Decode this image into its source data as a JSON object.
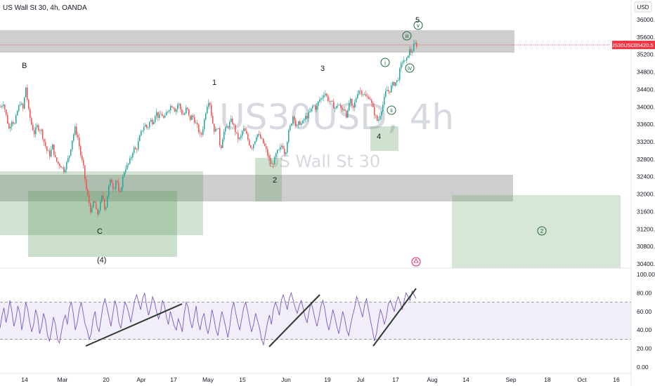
{
  "header": {
    "title": "US Wall St 30, 4h, OANDA",
    "currency_button": "USD"
  },
  "watermark": {
    "symbol": "US30USD, 4h",
    "name": "US Wall St 30"
  },
  "price_tag": {
    "symbol": "US30USD",
    "value": "35420.5"
  },
  "chart_data": {
    "type": "candlestick",
    "symbol": "US30USD",
    "interval": "4h",
    "price_axis": {
      "ticks": [
        "36000.0",
        "35600.0",
        "35200.0",
        "34800.0",
        "34400.0",
        "34000.0",
        "33600.0",
        "33200.0",
        "32800.0",
        "32400.0",
        "32000.0",
        "31600.0",
        "31200.0",
        "30800.0",
        "30400.0"
      ],
      "range": [
        30300,
        36200
      ]
    },
    "time_axis": {
      "ticks": [
        "14",
        "Mar",
        "20",
        "Apr",
        "17",
        "May",
        "15",
        "Jun",
        "19",
        "Jul",
        "17",
        "Aug",
        "14",
        "Sep",
        "18",
        "Oct",
        "16"
      ]
    },
    "price_path": [
      [
        0,
        34000
      ],
      [
        4,
        34100
      ],
      [
        8,
        33800
      ],
      [
        12,
        33500
      ],
      [
        16,
        33700
      ],
      [
        20,
        33600
      ],
      [
        24,
        33900
      ],
      [
        28,
        34100
      ],
      [
        32,
        33950
      ],
      [
        36,
        34450
      ],
      [
        40,
        33900
      ],
      [
        44,
        33600
      ],
      [
        48,
        33400
      ],
      [
        52,
        33550
      ],
      [
        58,
        33450
      ],
      [
        62,
        33200
      ],
      [
        66,
        33000
      ],
      [
        70,
        32900
      ],
      [
        74,
        33100
      ],
      [
        78,
        32800
      ],
      [
        82,
        32700
      ],
      [
        86,
        32650
      ],
      [
        90,
        32550
      ],
      [
        94,
        32700
      ],
      [
        98,
        32900
      ],
      [
        102,
        33250
      ],
      [
        106,
        33500
      ],
      [
        110,
        33300
      ],
      [
        114,
        32900
      ],
      [
        118,
        32600
      ],
      [
        122,
        32100
      ],
      [
        126,
        31800
      ],
      [
        129,
        31550
      ],
      [
        133,
        31900
      ],
      [
        137,
        31500
      ],
      [
        141,
        31700
      ],
      [
        145,
        32000
      ],
      [
        149,
        31600
      ],
      [
        153,
        32100
      ],
      [
        157,
        32350
      ],
      [
        161,
        32100
      ],
      [
        165,
        32400
      ],
      [
        169,
        31900
      ],
      [
        173,
        32300
      ],
      [
        177,
        32600
      ],
      [
        181,
        32650
      ],
      [
        185,
        32800
      ],
      [
        189,
        33050
      ],
      [
        193,
        33000
      ],
      [
        197,
        33250
      ],
      [
        201,
        33450
      ],
      [
        205,
        33600
      ],
      [
        209,
        33500
      ],
      [
        213,
        33700
      ],
      [
        217,
        33650
      ],
      [
        221,
        33900
      ],
      [
        225,
        33750
      ],
      [
        229,
        33850
      ],
      [
        233,
        33700
      ],
      [
        237,
        33900
      ],
      [
        241,
        34000
      ],
      [
        245,
        34050
      ],
      [
        249,
        33900
      ],
      [
        253,
        34100
      ],
      [
        257,
        33900
      ],
      [
        261,
        33800
      ],
      [
        265,
        34000
      ],
      [
        269,
        33700
      ],
      [
        273,
        33800
      ],
      [
        277,
        33650
      ],
      [
        281,
        33500
      ],
      [
        285,
        33300
      ],
      [
        289,
        33600
      ],
      [
        293,
        34000
      ],
      [
        297,
        34200
      ],
      [
        301,
        33700
      ],
      [
        305,
        33400
      ],
      [
        309,
        33600
      ],
      [
        313,
        33000
      ],
      [
        317,
        33400
      ],
      [
        321,
        33500
      ],
      [
        325,
        33600
      ],
      [
        329,
        33700
      ],
      [
        333,
        33500
      ],
      [
        337,
        33300
      ],
      [
        341,
        33250
      ],
      [
        345,
        33500
      ],
      [
        349,
        33400
      ],
      [
        353,
        33200
      ],
      [
        357,
        33050
      ],
      [
        361,
        33200
      ],
      [
        365,
        33400
      ],
      [
        369,
        33300
      ],
      [
        373,
        33200
      ],
      [
        377,
        33050
      ],
      [
        381,
        32850
      ],
      [
        385,
        32650
      ],
      [
        389,
        32750
      ],
      [
        393,
        32950
      ],
      [
        397,
        33000
      ],
      [
        401,
        33150
      ],
      [
        405,
        32900
      ],
      [
        409,
        33350
      ],
      [
        413,
        33600
      ],
      [
        417,
        33850
      ],
      [
        421,
        33500
      ],
      [
        425,
        33650
      ],
      [
        429,
        33600
      ],
      [
        433,
        33750
      ],
      [
        437,
        33800
      ],
      [
        441,
        33900
      ],
      [
        445,
        34050
      ],
      [
        449,
        33950
      ],
      [
        453,
        34150
      ],
      [
        457,
        34200
      ],
      [
        461,
        34350
      ],
      [
        465,
        34200
      ],
      [
        469,
        34100
      ],
      [
        473,
        34050
      ],
      [
        477,
        33950
      ],
      [
        481,
        34100
      ],
      [
        485,
        33900
      ],
      [
        489,
        34000
      ],
      [
        493,
        33750
      ],
      [
        497,
        34200
      ],
      [
        501,
        33900
      ],
      [
        505,
        34150
      ],
      [
        509,
        34400
      ],
      [
        513,
        34350
      ],
      [
        517,
        34300
      ],
      [
        521,
        34200
      ],
      [
        525,
        34250
      ],
      [
        529,
        34000
      ],
      [
        533,
        33800
      ],
      [
        537,
        33650
      ],
      [
        541,
        33900
      ],
      [
        545,
        34100
      ],
      [
        549,
        34400
      ],
      [
        553,
        34350
      ],
      [
        557,
        34500
      ],
      [
        561,
        34550
      ],
      [
        565,
        34600
      ],
      [
        569,
        34900
      ],
      [
        573,
        35100
      ],
      [
        577,
        35000
      ],
      [
        581,
        35300
      ],
      [
        585,
        35250
      ],
      [
        589,
        35450
      ],
      [
        592,
        35420
      ]
    ],
    "current_price": 35420.5,
    "wave_labels": [
      "B",
      "1",
      "3",
      "5",
      "2",
      "4",
      "C",
      "(4)"
    ],
    "sub_wave_labels": [
      "i",
      "ii",
      "iii",
      "iv",
      "v",
      "2"
    ],
    "rsi": {
      "axis_ticks": [
        "100.00",
        "80.00",
        "60.00",
        "40.00",
        "20.00",
        "0.00"
      ],
      "range": [
        0,
        100
      ],
      "overbought": 70,
      "oversold": 30,
      "values": [
        42,
        55,
        64,
        48,
        58,
        72,
        60,
        44,
        52,
        66,
        58,
        40,
        52,
        70,
        62,
        48,
        38,
        46,
        62,
        54,
        36,
        44,
        58,
        50,
        34,
        28,
        40,
        54,
        46,
        30,
        26,
        38,
        50,
        56,
        46,
        64,
        70,
        58,
        40,
        48,
        62,
        70,
        58,
        46,
        40,
        30,
        36,
        52,
        60,
        44,
        38,
        52,
        66,
        74,
        64,
        54,
        44,
        58,
        72,
        64,
        48,
        42,
        56,
        70,
        66,
        58,
        48,
        60,
        72,
        78,
        70,
        62,
        74,
        80,
        66,
        56,
        64,
        76,
        70,
        60,
        52,
        58,
        72,
        66,
        54,
        46,
        60,
        52,
        44,
        40,
        52,
        46,
        38,
        58,
        70,
        64,
        50,
        42,
        54,
        66,
        48,
        40,
        52,
        58,
        44,
        36,
        46,
        62,
        52,
        40,
        34,
        48,
        60,
        52,
        42,
        32,
        44,
        62,
        70,
        58,
        48,
        40,
        52,
        64,
        70,
        60,
        48,
        38,
        46,
        58,
        50,
        42,
        30,
        24,
        36,
        48,
        56,
        46,
        62,
        70,
        64,
        56,
        72,
        78,
        70,
        62,
        74,
        80,
        72,
        64,
        58,
        66,
        72,
        64,
        54,
        48,
        60,
        70,
        62,
        52,
        44,
        54,
        66,
        72,
        62,
        48,
        40,
        50,
        62,
        54,
        44,
        36,
        48,
        60,
        52,
        40,
        34,
        46,
        56,
        64,
        76,
        70,
        62,
        54,
        66,
        74,
        62,
        50,
        40,
        28,
        36,
        50,
        62,
        56,
        46,
        54,
        68,
        72,
        66,
        60,
        70,
        76,
        70,
        62,
        72,
        80,
        76,
        72,
        82,
        78,
        74
      ]
    }
  }
}
